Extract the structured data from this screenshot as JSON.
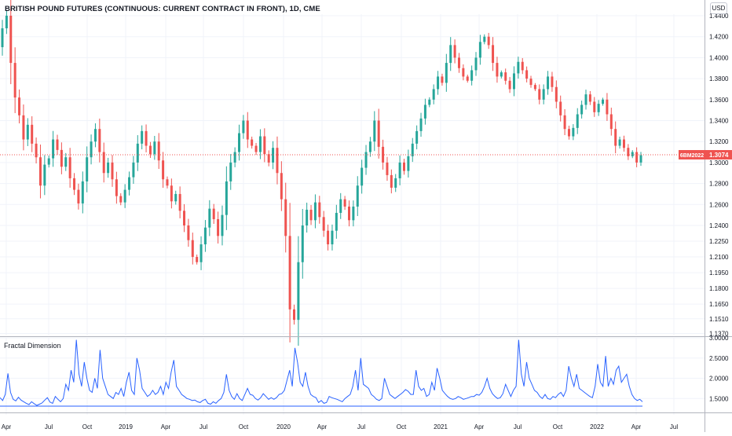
{
  "header": {
    "title": "BRITISH POUND FUTURES (CONTINUOUS: CURRENT CONTRACT IN FRONT), 1D, CME",
    "currency": "USD"
  },
  "indicator": {
    "title": "Fractal Dimension"
  },
  "price_label": {
    "symbol": "6BM2022",
    "value": "1.3074"
  },
  "colors": {
    "up": "#26a69a",
    "down": "#ef5350",
    "line": "#2962ff",
    "grid": "#f0f3fa",
    "axis": "#787b86"
  },
  "chart_data": [
    {
      "type": "candlestick",
      "title": "BRITISH POUND FUTURES (CONTINUOUS: CURRENT CONTRACT IN FRONT), 1D, CME",
      "ylim": [
        1.13,
        1.445
      ],
      "y_ticks": [
        "1.4400",
        "1.4200",
        "1.4000",
        "1.3800",
        "1.3600",
        "1.3400",
        "1.3200",
        "1.3000",
        "1.2800",
        "1.2600",
        "1.2400",
        "1.2250",
        "1.2100",
        "1.1950",
        "1.1800",
        "1.1650",
        "1.1510",
        "1.1370"
      ],
      "x_ticks": [
        "Apr",
        "Jul",
        "Oct",
        "2019",
        "Apr",
        "Jul",
        "Oct",
        "2020",
        "Apr",
        "Jul",
        "Oct",
        "2021",
        "Apr",
        "Jul",
        "Oct",
        "2022",
        "Apr",
        "Jul"
      ],
      "last_price": 1.3074,
      "series": [
        {
          "values": [
            [
              1.41,
              1.428
            ],
            [
              1.428,
              1.44
            ],
            [
              1.44,
              1.395
            ],
            [
              1.395,
              1.362
            ],
            [
              1.362,
              1.345
            ],
            [
              1.345,
              1.322
            ],
            [
              1.322,
              1.336
            ],
            [
              1.336,
              1.318
            ],
            [
              1.318,
              1.305
            ],
            [
              1.305,
              1.278
            ],
            [
              1.278,
              1.298
            ],
            [
              1.298,
              1.304
            ],
            [
              1.304,
              1.322
            ],
            [
              1.322,
              1.312
            ],
            [
              1.312,
              1.296
            ],
            [
              1.296,
              1.305
            ],
            [
              1.305,
              1.285
            ],
            [
              1.285,
              1.274
            ],
            [
              1.274,
              1.261
            ],
            [
              1.261,
              1.282
            ],
            [
              1.282,
              1.305
            ],
            [
              1.305,
              1.32
            ],
            [
              1.32,
              1.332
            ],
            [
              1.332,
              1.31
            ],
            [
              1.31,
              1.29
            ],
            [
              1.29,
              1.3
            ],
            [
              1.3,
              1.284
            ],
            [
              1.284,
              1.268
            ],
            [
              1.268,
              1.262
            ],
            [
              1.262,
              1.274
            ],
            [
              1.274,
              1.286
            ],
            [
              1.286,
              1.3
            ],
            [
              1.3,
              1.318
            ],
            [
              1.318,
              1.33
            ],
            [
              1.33,
              1.316
            ],
            [
              1.316,
              1.308
            ],
            [
              1.308,
              1.32
            ],
            [
              1.32,
              1.302
            ],
            [
              1.302,
              1.284
            ],
            [
              1.284,
              1.278
            ],
            [
              1.278,
              1.263
            ],
            [
              1.263,
              1.27
            ],
            [
              1.27,
              1.254
            ],
            [
              1.254,
              1.24
            ],
            [
              1.24,
              1.226
            ],
            [
              1.226,
              1.21
            ],
            [
              1.21,
              1.205
            ],
            [
              1.205,
              1.222
            ],
            [
              1.222,
              1.238
            ],
            [
              1.238,
              1.256
            ],
            [
              1.256,
              1.246
            ],
            [
              1.246,
              1.23
            ],
            [
              1.23,
              1.25
            ],
            [
              1.25,
              1.282
            ],
            [
              1.282,
              1.3
            ],
            [
              1.3,
              1.31
            ],
            [
              1.31,
              1.328
            ],
            [
              1.328,
              1.34
            ],
            [
              1.34,
              1.322
            ],
            [
              1.322,
              1.316
            ],
            [
              1.316,
              1.31
            ],
            [
              1.31,
              1.325
            ],
            [
              1.325,
              1.308
            ],
            [
              1.308,
              1.3
            ],
            [
              1.3,
              1.314
            ],
            [
              1.314,
              1.29
            ],
            [
              1.29,
              1.265
            ],
            [
              1.265,
              1.23
            ],
            [
              1.23,
              1.16
            ],
            [
              1.16,
              1.15
            ],
            [
              1.15,
              1.205
            ],
            [
              1.205,
              1.24
            ],
            [
              1.24,
              1.255
            ],
            [
              1.255,
              1.245
            ],
            [
              1.245,
              1.262
            ],
            [
              1.262,
              1.248
            ],
            [
              1.248,
              1.235
            ],
            [
              1.235,
              1.222
            ],
            [
              1.222,
              1.235
            ],
            [
              1.235,
              1.252
            ],
            [
              1.252,
              1.265
            ],
            [
              1.265,
              1.258
            ],
            [
              1.258,
              1.245
            ],
            [
              1.245,
              1.258
            ],
            [
              1.258,
              1.278
            ],
            [
              1.278,
              1.295
            ],
            [
              1.295,
              1.31
            ],
            [
              1.31,
              1.32
            ],
            [
              1.32,
              1.34
            ],
            [
              1.34,
              1.315
            ],
            [
              1.315,
              1.3
            ],
            [
              1.3,
              1.288
            ],
            [
              1.288,
              1.276
            ],
            [
              1.276,
              1.285
            ],
            [
              1.285,
              1.3
            ],
            [
              1.3,
              1.292
            ],
            [
              1.292,
              1.306
            ],
            [
              1.306,
              1.318
            ],
            [
              1.318,
              1.33
            ],
            [
              1.33,
              1.342
            ],
            [
              1.342,
              1.355
            ],
            [
              1.355,
              1.36
            ],
            [
              1.36,
              1.37
            ],
            [
              1.37,
              1.382
            ],
            [
              1.382,
              1.376
            ],
            [
              1.376,
              1.395
            ],
            [
              1.395,
              1.412
            ],
            [
              1.412,
              1.4
            ],
            [
              1.4,
              1.39
            ],
            [
              1.39,
              1.382
            ],
            [
              1.382,
              1.378
            ],
            [
              1.378,
              1.388
            ],
            [
              1.388,
              1.4
            ],
            [
              1.4,
              1.415
            ],
            [
              1.415,
              1.42
            ],
            [
              1.42,
              1.412
            ],
            [
              1.412,
              1.395
            ],
            [
              1.395,
              1.382
            ],
            [
              1.382,
              1.386
            ],
            [
              1.386,
              1.378
            ],
            [
              1.378,
              1.37
            ],
            [
              1.37,
              1.385
            ],
            [
              1.385,
              1.396
            ],
            [
              1.396,
              1.388
            ],
            [
              1.388,
              1.38
            ],
            [
              1.38,
              1.374
            ],
            [
              1.374,
              1.37
            ],
            [
              1.37,
              1.36
            ],
            [
              1.36,
              1.37
            ],
            [
              1.37,
              1.382
            ],
            [
              1.382,
              1.372
            ],
            [
              1.372,
              1.358
            ],
            [
              1.358,
              1.345
            ],
            [
              1.345,
              1.332
            ],
            [
              1.332,
              1.325
            ],
            [
              1.325,
              1.333
            ],
            [
              1.333,
              1.346
            ],
            [
              1.346,
              1.355
            ],
            [
              1.355,
              1.365
            ],
            [
              1.365,
              1.358
            ],
            [
              1.358,
              1.348
            ],
            [
              1.348,
              1.356
            ],
            [
              1.356,
              1.36
            ],
            [
              1.36,
              1.346
            ],
            [
              1.346,
              1.332
            ],
            [
              1.332,
              1.316
            ],
            [
              1.316,
              1.322
            ],
            [
              1.322,
              1.314
            ],
            [
              1.314,
              1.306
            ],
            [
              1.306,
              1.31
            ],
            [
              1.31,
              1.3
            ],
            [
              1.3,
              1.307
            ]
          ]
        }
      ]
    },
    {
      "type": "line",
      "title": "Fractal Dimension",
      "ylim": [
        1.3,
        3.0
      ],
      "y_ticks": [
        "3.0000",
        "2.5000",
        "2.0000",
        "1.5000"
      ],
      "level": 1.31,
      "series": [
        {
          "values": [
            1.52,
            1.45,
            1.6,
            2.12,
            1.65,
            1.48,
            1.44,
            1.53,
            1.46,
            1.42,
            1.38,
            1.35,
            1.42,
            1.37,
            1.33,
            1.36,
            1.39,
            1.46,
            1.52,
            1.41,
            1.38,
            1.55,
            1.48,
            1.42,
            1.5,
            1.85,
            1.7,
            2.2,
            1.9,
            2.95,
            2.1,
            1.8,
            2.4,
            2.0,
            1.7,
            1.65,
            2.0,
            1.75,
            2.7,
            2.0,
            1.8,
            1.6,
            1.55,
            1.5,
            1.65,
            1.6,
            1.75,
            1.55,
            1.9,
            2.15,
            1.7,
            1.6,
            2.5,
            2.2,
            1.75,
            1.65,
            1.55,
            1.6,
            1.7,
            1.6,
            1.65,
            1.8,
            1.6,
            1.9,
            1.75,
            2.15,
            2.45,
            1.8,
            1.7,
            1.6,
            1.55,
            1.5,
            1.48,
            1.45,
            1.46,
            1.42,
            1.4,
            1.45,
            1.48,
            1.38,
            1.36,
            1.42,
            1.38,
            1.45,
            1.5,
            1.65,
            2.1,
            1.7,
            1.55,
            1.48,
            1.62,
            1.5,
            1.45,
            1.6,
            1.75,
            1.6,
            1.58,
            1.5,
            1.46,
            1.52,
            1.62,
            1.55,
            1.48,
            1.52,
            1.48,
            1.52,
            1.6,
            1.62,
            1.7,
            1.95,
            2.2,
            1.8,
            2.75,
            2.4,
            1.9,
            1.8,
            2.15,
            1.8,
            1.6,
            1.55,
            1.52,
            1.4,
            1.45,
            1.38,
            1.4,
            1.55,
            1.52,
            1.5,
            1.48,
            1.45,
            1.42,
            1.5,
            1.55,
            1.6,
            1.8,
            2.2,
            1.7,
            2.5,
            1.85,
            1.8,
            1.75,
            1.6,
            1.55,
            1.48,
            1.45,
            1.5,
            2.0,
            1.8,
            1.6,
            1.55,
            1.5,
            1.55,
            1.6,
            1.65,
            1.72,
            1.68,
            1.6,
            1.6,
            2.2,
            1.8,
            1.7,
            1.75,
            1.55,
            1.6,
            1.9,
            1.7,
            2.25,
            2.0,
            1.7,
            1.62,
            1.55,
            1.5,
            1.48,
            1.5,
            1.55,
            1.52,
            1.48,
            1.5,
            1.52,
            1.55,
            1.55,
            1.6,
            1.58,
            1.65,
            1.8,
            2.0,
            1.75,
            1.62,
            1.55,
            1.5,
            1.52,
            1.62,
            1.85,
            1.7,
            1.55,
            1.7,
            1.8,
            2.95,
            2.1,
            1.8,
            2.4,
            2.0,
            1.85,
            1.7,
            1.65,
            1.55,
            1.5,
            1.6,
            1.5,
            1.48,
            1.55,
            1.52,
            1.6,
            1.65,
            1.55,
            1.7,
            2.3,
            2.0,
            1.8,
            2.1,
            1.75,
            1.7,
            1.65,
            1.6,
            1.55,
            1.52,
            1.8,
            2.35,
            1.9,
            1.8,
            2.55,
            1.8,
            2.0,
            1.85,
            2.2,
            2.3,
            1.9,
            2.0,
            2.1,
            1.8,
            1.6,
            1.5,
            1.45,
            1.48,
            1.42
          ]
        }
      ]
    }
  ]
}
